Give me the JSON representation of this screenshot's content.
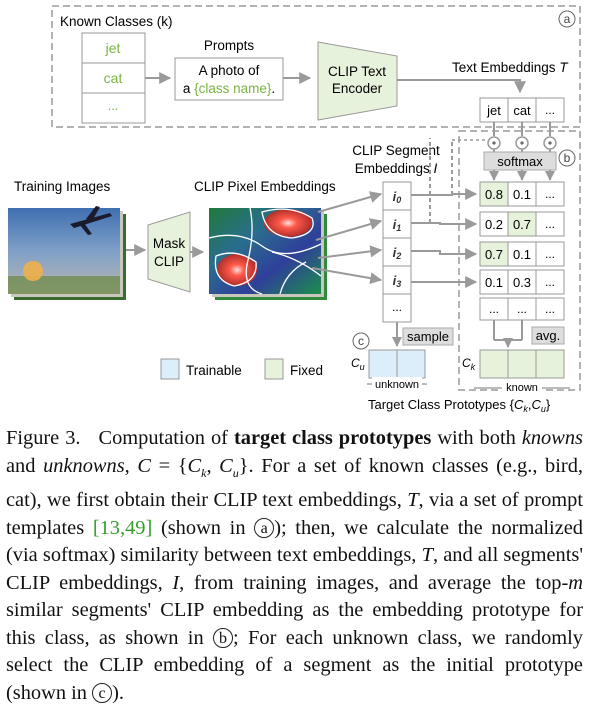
{
  "figure": {
    "known_classes_label": "Known Classes (k)",
    "classes": [
      "jet",
      "cat",
      "..."
    ],
    "prompts_label": "Prompts",
    "prompt_line1": "A photo of",
    "prompt_line2_prefix": "a ",
    "prompt_line2_class": "{class name}",
    "prompt_line2_suffix": ".",
    "clip_text_encoder_line1": "CLIP Text",
    "clip_text_encoder_line2": "Encoder",
    "text_embeddings_label": "Text Embeddings T",
    "text_emb_cells": [
      "jet",
      "cat",
      "..."
    ],
    "marker_a": "a",
    "marker_b": "b",
    "marker_c": "c",
    "softmax_label": "softmax",
    "training_images_label": "Training Images",
    "clip_pixel_embeddings_label": "CLIP Pixel Embeddings",
    "mask_clip_line1": "Mask",
    "mask_clip_line2": "CLIP",
    "clip_segment_line1": "CLIP Segment",
    "clip_segment_line2": "Embeddings I",
    "segments": [
      "i0",
      "i1",
      "i2",
      "i3",
      "..."
    ],
    "similarity_rows": [
      [
        "0.8",
        "0.1",
        "..."
      ],
      [
        "0.2",
        "0.7",
        "..."
      ],
      [
        "0.7",
        "0.1",
        "..."
      ],
      [
        "0.1",
        "0.3",
        "..."
      ],
      [
        "...",
        "...",
        "..."
      ]
    ],
    "sample_label": "sample",
    "avg_label": "avg.",
    "cu_label": "Cu",
    "ck_label": "Ck",
    "unknown_label": "unknown",
    "known_label": "known",
    "legend_trainable": "Trainable",
    "legend_fixed": "Fixed",
    "target_prototypes_label": "Target Class Prototypes {Ck,Cu}",
    "colors": {
      "green_fill": "#e7f2dc",
      "blue_fill": "#dbeefa",
      "class_text": "#7cb342",
      "gray_arrow": "#9a9a9a"
    }
  },
  "caption": {
    "fig_label": "Figure 3.",
    "t1": "Computation of",
    "bold": "target class prototypes",
    "t2": "with both",
    "knowns": "knowns",
    "t3": "and",
    "unknowns": "unknowns",
    "eq": ", C = {Ck, Cu}.",
    "t4": "For a set of known classes (e.g., bird, cat), we first obtain their CLIP text embeddings,",
    "T": "T",
    "t5": ", via a set of prompt templates",
    "cite": "[13,49]",
    "t6": "(shown in",
    "ca": "a",
    "t7": "); then, we calculate the normalized (via softmax) similarity between text embeddings,",
    "T2": "T",
    "t8": ", and all segments' CLIP embeddings,",
    "I": "I",
    "t9": ", from training images, and average the top-",
    "m": "m",
    "t10": "similar segments' CLIP embedding as the embedding prototype for this class, as shown in",
    "cb": "b",
    "t11": "; For each unknown class, we randomly select the CLIP embedding of a segment as the initial prototype (shown in",
    "cc": "c",
    "t12": ")."
  }
}
